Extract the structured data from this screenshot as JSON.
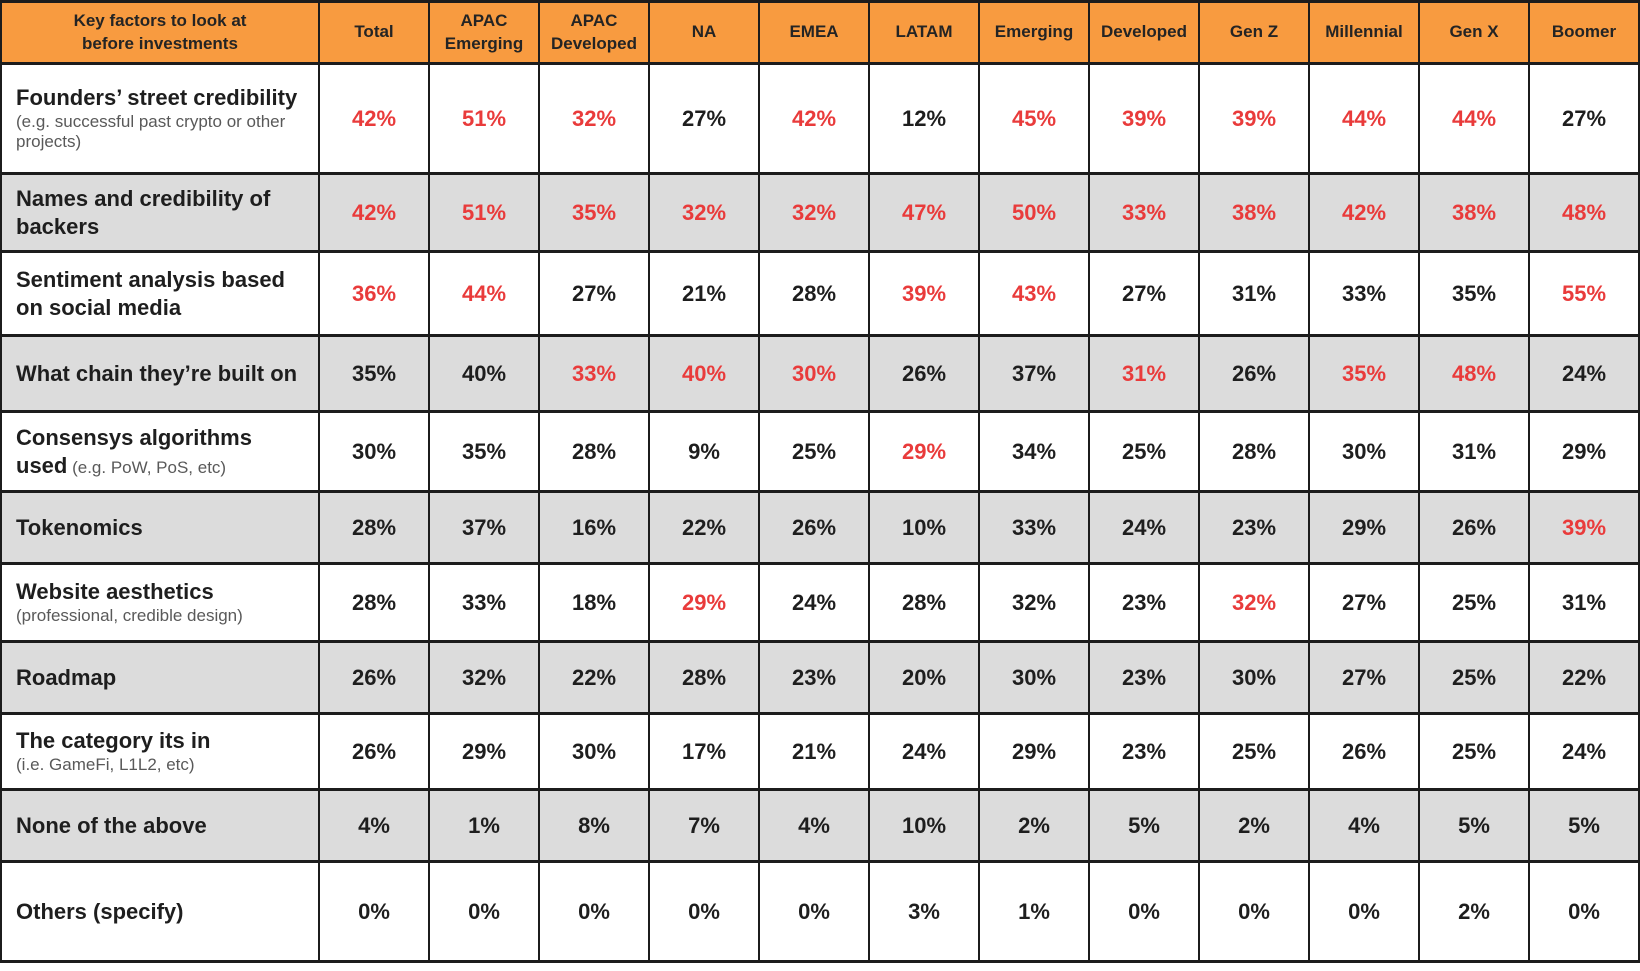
{
  "colors": {
    "header_bg": "#F89B40",
    "highlight_red": "#E93B3B",
    "text_dark": "#1E1E1E",
    "row_shaded": "#DCDCDC",
    "row_plain": "#FFFFFF",
    "border": "#1C1C1C",
    "sublabel_gray": "#595959"
  },
  "chart_data": {
    "type": "table",
    "title": "Key factors to look at\nbefore investments",
    "columns": [
      "Total",
      "APAC\nEmerging",
      "APAC\nDeveloped",
      "NA",
      "EMEA",
      "LATAM",
      "Emerging",
      "Developed",
      "Gen Z",
      "Millennial",
      "Gen X",
      "Boomer"
    ],
    "value_unit": "%",
    "legend_note": "red values indicate highlighted cells",
    "rows": [
      {
        "factor": "Founders’ street credibility",
        "note": "(e.g. successful past crypto or other projects)",
        "note_inline": false,
        "values_pct": [
          42,
          51,
          32,
          27,
          42,
          12,
          45,
          39,
          39,
          44,
          44,
          27
        ],
        "red": [
          true,
          true,
          true,
          false,
          true,
          false,
          true,
          true,
          true,
          true,
          true,
          false
        ]
      },
      {
        "factor": "Names and credibility of backers",
        "note": null,
        "note_inline": false,
        "values_pct": [
          42,
          51,
          35,
          32,
          32,
          47,
          50,
          33,
          38,
          42,
          38,
          48
        ],
        "red": [
          true,
          true,
          true,
          true,
          true,
          true,
          true,
          true,
          true,
          true,
          true,
          true
        ]
      },
      {
        "factor": "Sentiment analysis based on social media",
        "note": null,
        "note_inline": false,
        "values_pct": [
          36,
          44,
          27,
          21,
          28,
          39,
          43,
          27,
          31,
          33,
          35,
          55
        ],
        "red": [
          true,
          true,
          false,
          false,
          false,
          true,
          true,
          false,
          false,
          false,
          false,
          true
        ]
      },
      {
        "factor": "What chain they’re built on",
        "note": null,
        "note_inline": false,
        "values_pct": [
          35,
          40,
          33,
          40,
          30,
          26,
          37,
          31,
          26,
          35,
          48,
          24
        ],
        "red": [
          false,
          false,
          true,
          true,
          true,
          false,
          false,
          true,
          false,
          true,
          true,
          false
        ]
      },
      {
        "factor": "Consensys algorithms used",
        "note": "(e.g. PoW, PoS, etc)",
        "note_inline": true,
        "values_pct": [
          30,
          35,
          28,
          9,
          25,
          29,
          34,
          25,
          28,
          30,
          31,
          29
        ],
        "red": [
          false,
          false,
          false,
          false,
          false,
          true,
          false,
          false,
          false,
          false,
          false,
          false
        ]
      },
      {
        "factor": "Tokenomics",
        "note": null,
        "note_inline": false,
        "values_pct": [
          28,
          37,
          16,
          22,
          26,
          10,
          33,
          24,
          23,
          29,
          26,
          39
        ],
        "red": [
          false,
          false,
          false,
          false,
          false,
          false,
          false,
          false,
          false,
          false,
          false,
          true
        ]
      },
      {
        "factor": "Website aesthetics",
        "note": "(professional, credible design)",
        "note_inline": false,
        "values_pct": [
          28,
          33,
          18,
          29,
          24,
          28,
          32,
          23,
          32,
          27,
          25,
          31
        ],
        "red": [
          false,
          false,
          false,
          true,
          false,
          false,
          false,
          false,
          true,
          false,
          false,
          false
        ]
      },
      {
        "factor": "Roadmap",
        "note": null,
        "note_inline": false,
        "values_pct": [
          26,
          32,
          22,
          28,
          23,
          20,
          30,
          23,
          30,
          27,
          25,
          22
        ],
        "red": [
          false,
          false,
          false,
          false,
          false,
          false,
          false,
          false,
          false,
          false,
          false,
          false
        ]
      },
      {
        "factor": "The category its in",
        "note": "(i.e. GameFi, L1L2, etc)",
        "note_inline": false,
        "values_pct": [
          26,
          29,
          30,
          17,
          21,
          24,
          29,
          23,
          25,
          26,
          25,
          24
        ],
        "red": [
          false,
          false,
          false,
          false,
          false,
          false,
          false,
          false,
          false,
          false,
          false,
          false
        ]
      },
      {
        "factor": "None of the above",
        "note": null,
        "note_inline": false,
        "values_pct": [
          4,
          1,
          8,
          7,
          4,
          10,
          2,
          5,
          2,
          4,
          5,
          5
        ],
        "red": [
          false,
          false,
          false,
          false,
          false,
          false,
          false,
          false,
          false,
          false,
          false,
          false
        ]
      },
      {
        "factor": "Others (specify)",
        "note": null,
        "note_inline": false,
        "values_pct": [
          0,
          0,
          0,
          0,
          0,
          3,
          1,
          0,
          0,
          0,
          2,
          0
        ],
        "red": [
          false,
          false,
          false,
          false,
          false,
          false,
          false,
          false,
          false,
          false,
          false,
          false
        ]
      }
    ]
  }
}
